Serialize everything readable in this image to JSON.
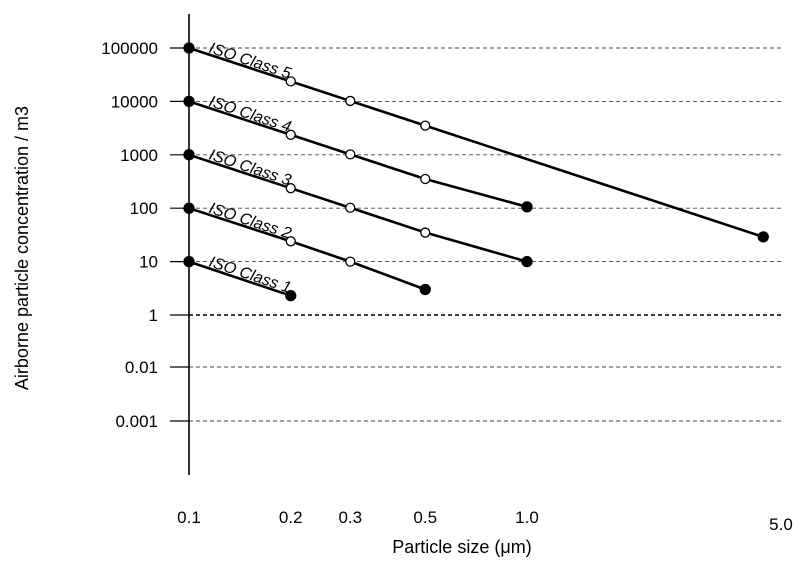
{
  "chart_data": {
    "type": "line",
    "title": "",
    "xlabel": "Particle size  (μm)",
    "ylabel": "Airborne particle concentration / m3",
    "x_scale": "log",
    "y_scale": "categorical",
    "x_ticks": [
      {
        "value": 0.1,
        "label": "0.1"
      },
      {
        "value": 0.2,
        "label": "0.2"
      },
      {
        "value": 0.3,
        "label": "0.3"
      },
      {
        "value": 0.5,
        "label": "0.5"
      },
      {
        "value": 1.0,
        "label": "1.0"
      },
      {
        "value": 5.0,
        "label": "5.0"
      }
    ],
    "y_ticks": [
      {
        "value": 100000,
        "label": "100000"
      },
      {
        "value": 10000,
        "label": "10000"
      },
      {
        "value": 1000,
        "label": "1000"
      },
      {
        "value": 100,
        "label": "100"
      },
      {
        "value": 10,
        "label": "10"
      },
      {
        "value": 1,
        "label": "1"
      },
      {
        "value": 0.01,
        "label": "0.01"
      },
      {
        "value": 0.001,
        "label": "0.001"
      }
    ],
    "grid": "horizontal dashed",
    "series": [
      {
        "name": "ISO Class 1",
        "x": [
          0.1,
          0.2
        ],
        "y": [
          10,
          2.3
        ],
        "filled": [
          true,
          true
        ]
      },
      {
        "name": "ISO Class 2",
        "x": [
          0.1,
          0.2,
          0.3,
          0.5
        ],
        "y": [
          100,
          24,
          10,
          3
        ],
        "filled": [
          true,
          false,
          false,
          true
        ]
      },
      {
        "name": "ISO Class 3",
        "x": [
          0.1,
          0.2,
          0.3,
          0.5,
          1.0
        ],
        "y": [
          1000,
          237,
          102,
          35,
          10
        ],
        "filled": [
          true,
          false,
          false,
          false,
          true
        ]
      },
      {
        "name": "ISO Class 4",
        "x": [
          0.1,
          0.2,
          0.3,
          0.5,
          1.0
        ],
        "y": [
          10000,
          2370,
          1020,
          352,
          106
        ],
        "filled": [
          true,
          false,
          false,
          false,
          true
        ]
      },
      {
        "name": "ISO Class 5",
        "x": [
          0.1,
          0.2,
          0.3,
          0.5,
          5.0
        ],
        "y": [
          100000,
          23700,
          10200,
          3520,
          29
        ],
        "filled": [
          true,
          false,
          false,
          false,
          true
        ]
      }
    ]
  }
}
